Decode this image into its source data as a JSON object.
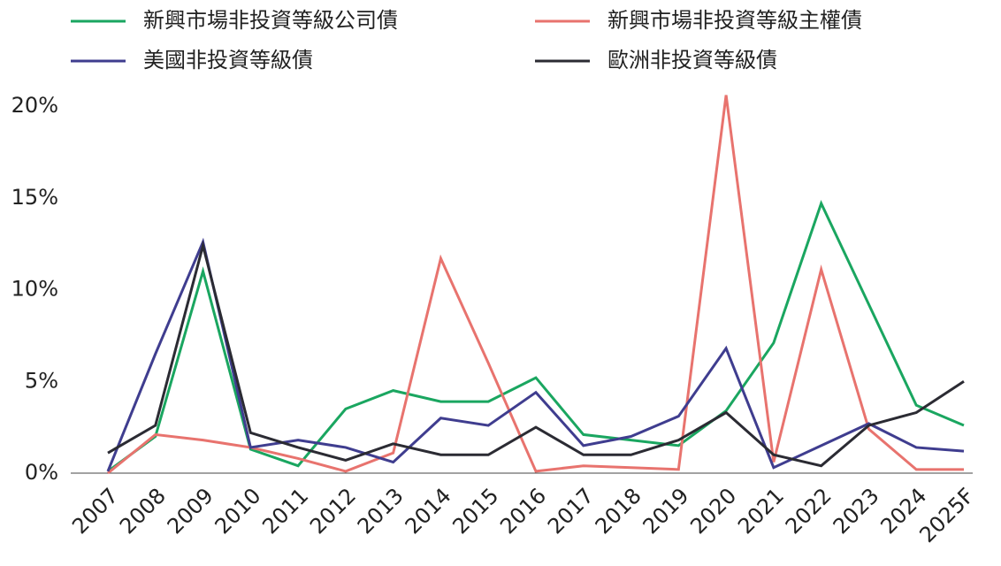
{
  "chart_data": {
    "type": "line",
    "categories": [
      "2007",
      "2008",
      "2009",
      "2010",
      "2011",
      "2012",
      "2013",
      "2014",
      "2015",
      "2016",
      "2017",
      "2018",
      "2019",
      "2020",
      "2021",
      "2022",
      "2023",
      "2024",
      "2025F"
    ],
    "series": [
      {
        "name": "新興市場非投資等級公司債",
        "color": "#1aa660",
        "values": [
          0.1,
          2.0,
          11.0,
          1.3,
          0.4,
          3.5,
          4.5,
          3.9,
          3.9,
          5.2,
          2.1,
          1.8,
          1.5,
          3.4,
          7.1,
          14.7,
          9.2,
          3.7,
          2.6
        ]
      },
      {
        "name": "新興市場非投資等級主權債",
        "color": "#e8736e",
        "values": [
          0,
          2.1,
          1.8,
          1.4,
          0.8,
          0.1,
          1.1,
          11.7,
          6.0,
          0.1,
          0.4,
          0.3,
          0.2,
          20.6,
          0.6,
          11.1,
          2.4,
          0.2,
          0.2
        ]
      },
      {
        "name": "美國非投資等級債",
        "color": "#3f3d8f",
        "values": [
          0.1,
          6.5,
          12.6,
          1.4,
          1.8,
          1.4,
          0.6,
          3.0,
          2.6,
          4.4,
          1.5,
          2.0,
          3.1,
          6.8,
          0.3,
          1.5,
          2.7,
          1.4,
          1.2
        ]
      },
      {
        "name": "歐洲非投資等級債",
        "color": "#2b2b33",
        "values": [
          1.1,
          2.6,
          12.4,
          2.2,
          1.4,
          0.7,
          1.6,
          1.0,
          1.0,
          2.5,
          1.0,
          1.0,
          1.8,
          3.3,
          1.0,
          0.4,
          2.6,
          3.3,
          5.0
        ]
      }
    ],
    "ylim": [
      0,
      20
    ],
    "yticks": [
      {
        "value": 0,
        "label": "0%"
      },
      {
        "value": 5,
        "label": "5%"
      },
      {
        "value": 10,
        "label": "10%"
      },
      {
        "value": 15,
        "label": "15%"
      },
      {
        "value": 20,
        "label": "20%"
      }
    ],
    "grid": false
  }
}
